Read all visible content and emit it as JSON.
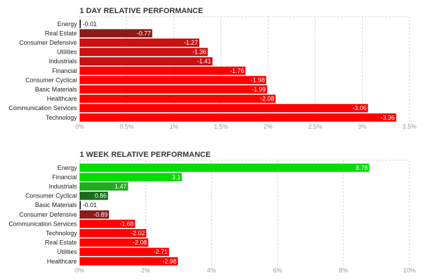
{
  "chart_data": [
    {
      "type": "bar",
      "orientation": "horizontal",
      "title": "1 DAY RELATIVE PERFORMANCE",
      "categories": [
        "Energy",
        "Real Estate",
        "Consumer Defensive",
        "Utilities",
        "Industrials",
        "Financial",
        "Consumer Cyclical",
        "Basic Materials",
        "Healthcare",
        "Communication Services",
        "Technology"
      ],
      "values": [
        -0.01,
        -0.77,
        -1.27,
        -1.36,
        -1.41,
        -1.76,
        -1.98,
        -1.99,
        -2.08,
        -3.06,
        -3.36
      ],
      "value_labels": [
        "-0.01",
        "-0.77",
        "-1.27",
        "-1.36",
        "-1.41",
        "-1.76",
        "-1.98",
        "-1.99",
        "-2.08",
        "-3.06",
        "-3.36"
      ],
      "bar_magnitude": "absolute value, bars extend right from 0%",
      "xlim": [
        0,
        3.5
      ],
      "xticks": [
        "0%",
        "0.5%",
        "1%",
        "1.5%",
        "2%",
        "2.5%",
        "3%",
        "3.5%"
      ],
      "grid": true,
      "colors": {
        "positive_bright": "#00dd00",
        "positive_mid": "#22aa22",
        "positive_dark": "#1a6b1a",
        "negative_dark": "#8b1a1a",
        "negative_mid": "#cc1111",
        "negative_bright": "#ff0000",
        "neutral": "#000000"
      }
    },
    {
      "type": "bar",
      "orientation": "horizontal",
      "title": "1 WEEK RELATIVE PERFORMANCE",
      "categories": [
        "Energy",
        "Financial",
        "Industrials",
        "Consumer Cyclical",
        "Basic Materials",
        "Consumer Defensive",
        "Communication Services",
        "Technology",
        "Real Estate",
        "Utilities",
        "Healthcare"
      ],
      "values": [
        8.78,
        3.1,
        1.47,
        0.86,
        -0.01,
        -0.89,
        -1.68,
        -2.02,
        -2.08,
        -2.71,
        -2.98
      ],
      "value_labels": [
        "8.78",
        "3.1",
        "1.47",
        "0.86",
        "-0.01",
        "-0.89",
        "-1.68",
        "-2.02",
        "-2.08",
        "-2.71",
        "-2.98"
      ],
      "bar_magnitude": "absolute value, bars extend right from 0%",
      "xlim": [
        0,
        10
      ],
      "xticks": [
        "0%",
        "2%",
        "4%",
        "6%",
        "8%",
        "10%"
      ],
      "grid": true,
      "colors": {
        "positive_bright": "#00dd00",
        "positive_mid": "#22aa22",
        "positive_dark": "#1a6b1a",
        "negative_dark": "#8b1a1a",
        "negative_mid": "#cc1111",
        "negative_bright": "#ff0000",
        "neutral": "#000000"
      }
    }
  ]
}
